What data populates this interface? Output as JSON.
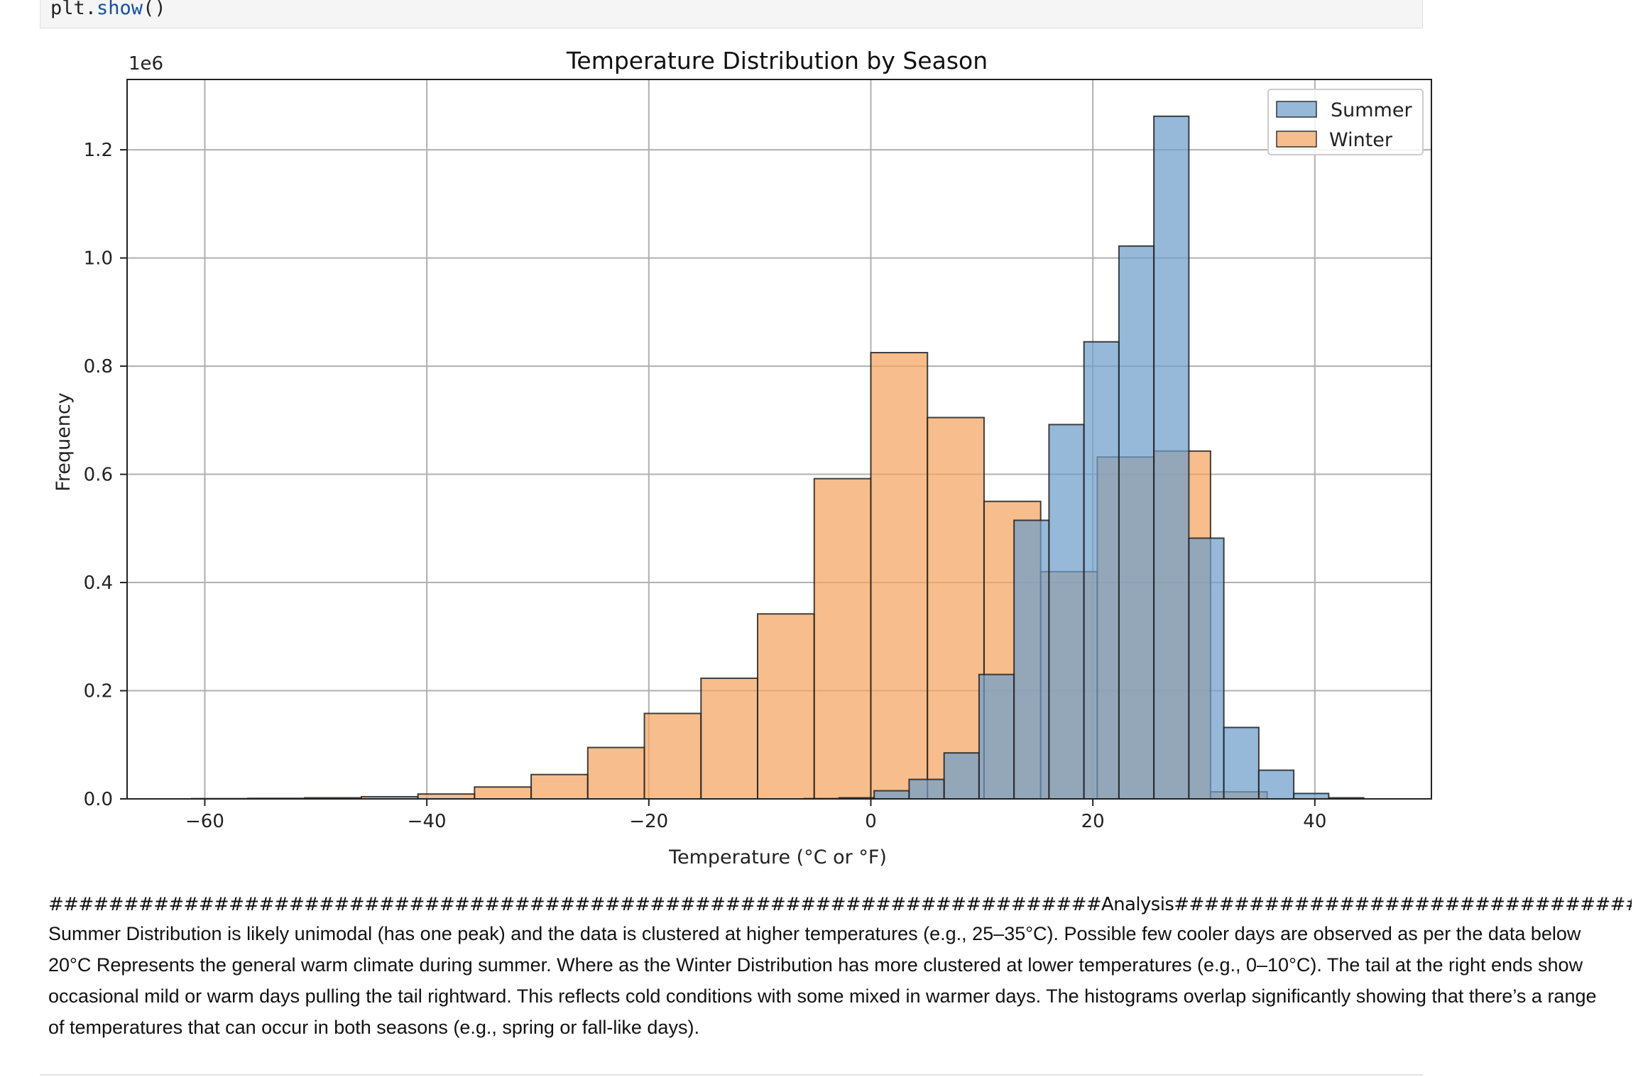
{
  "code_cell": {
    "prefix": "plt.",
    "fn": "show",
    "suffix": "()"
  },
  "markdown": {
    "heading": "######################################################################Analysis######################################################################",
    "paragraph": "Summer Distribution is likely unimodal (has one peak) and the data is clustered at higher temperatures (e.g., 25–35°C). Possible few cooler days are observed as per the data below 20°C Represents the general warm climate during summer. Where as the Winter Distribution has more clustered at lower temperatures (e.g., 0–10°C). The tail at the right ends show occasional mild or warm days pulling the tail rightward. This reflects cold conditions with some mixed in warmer days. The histograms overlap significantly showing that there’s a range of temperatures that can occur in both seasons (e.g., spring or fall-like days)."
  },
  "chart_data": {
    "type": "bar",
    "title": "Temperature Distribution by Season",
    "xlabel": "Temperature (°C or °F)",
    "ylabel": "Frequency",
    "y_offset_label": "1e6",
    "xlim": [
      -67,
      50.5
    ],
    "ylim": [
      0,
      1.33
    ],
    "x_ticks": [
      -60,
      -40,
      -20,
      0,
      20,
      40
    ],
    "x_tick_labels": [
      "−60",
      "−40",
      "−20",
      "0",
      "20",
      "40"
    ],
    "y_ticks": [
      0.0,
      0.2,
      0.4,
      0.6,
      0.8,
      1.0,
      1.2
    ],
    "y_tick_labels": [
      "0.0",
      "0.2",
      "0.4",
      "0.6",
      "0.8",
      "1.0",
      "1.2"
    ],
    "grid": true,
    "legend_position": "top-right",
    "series": [
      {
        "name": "Winter",
        "color": "#f4a460",
        "bin_edges": [
          -61.2,
          -56.1,
          -51.0,
          -45.9,
          -40.8,
          -35.7,
          -30.6,
          -25.5,
          -20.4,
          -15.3,
          -10.2,
          -5.1,
          0.0,
          5.1,
          10.2,
          15.3,
          20.4,
          25.5,
          30.6,
          35.7
        ],
        "values": [
          0.0005,
          0.001,
          0.002,
          0.004,
          0.009,
          0.022,
          0.045,
          0.095,
          0.158,
          0.223,
          0.342,
          0.592,
          0.825,
          0.705,
          0.55,
          0.42,
          0.632,
          0.643,
          0.013
        ]
      },
      {
        "name": "Summer",
        "color": "#6d9ecb",
        "bin_edges": [
          -6.0,
          -2.85,
          0.3,
          3.45,
          6.6,
          9.75,
          12.9,
          16.05,
          19.2,
          22.35,
          25.5,
          28.65,
          31.8,
          34.95,
          38.1,
          41.25,
          44.4
        ],
        "values": [
          0.0005,
          0.002,
          0.015,
          0.036,
          0.085,
          0.23,
          0.515,
          0.692,
          0.845,
          1.022,
          1.262,
          0.482,
          0.132,
          0.053,
          0.01,
          0.002
        ]
      }
    ]
  }
}
